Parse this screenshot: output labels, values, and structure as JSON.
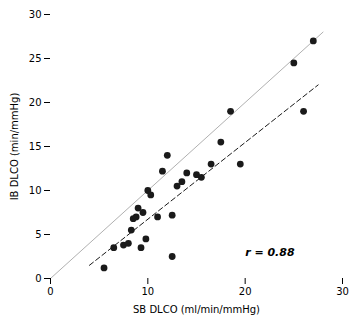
{
  "chart_data": {
    "type": "scatter",
    "x": [
      5.5,
      6.5,
      7.5,
      8.0,
      8.3,
      8.5,
      8.8,
      9.0,
      9.3,
      9.5,
      9.8,
      10.0,
      10.3,
      11.0,
      11.5,
      12.0,
      12.5,
      13.0,
      13.5,
      14.0,
      15.0,
      15.5,
      16.5,
      17.5,
      18.5,
      19.5,
      25.0,
      26.0,
      27.0,
      12.5
    ],
    "values": [
      1.2,
      3.5,
      3.8,
      4.0,
      5.5,
      6.8,
      7.0,
      8.0,
      3.5,
      7.5,
      4.5,
      10.0,
      9.5,
      7.0,
      12.2,
      14.0,
      7.2,
      10.5,
      11.0,
      12.0,
      11.8,
      11.5,
      13.0,
      15.5,
      19.0,
      13.0,
      24.5,
      19.0,
      27.0,
      2.5
    ],
    "color": "#1a1a1a",
    "marker": "circle",
    "identity_line": {
      "x": [
        0,
        28
      ],
      "y": [
        0,
        28
      ],
      "color": "#b0b0b0",
      "line_style": "solid"
    },
    "regression_line": {
      "x": [
        4.0,
        27.5
      ],
      "y": [
        1.5,
        22.0
      ],
      "color": "#1a1a1a",
      "line_style": "dashed"
    },
    "annotations": [
      {
        "text": "r = 0.88",
        "x": 20,
        "y": 3.0
      }
    ],
    "xlabel": "SB DLCO (ml/min/mmHg)",
    "ylabel": "IB DLCO (min/mmHg)",
    "xlim": [
      0,
      30
    ],
    "ylim": [
      0,
      30
    ],
    "xticks": [
      0,
      10,
      20,
      30
    ],
    "yticks": [
      0,
      5,
      10,
      15,
      20,
      25,
      30
    ],
    "grid": false
  }
}
